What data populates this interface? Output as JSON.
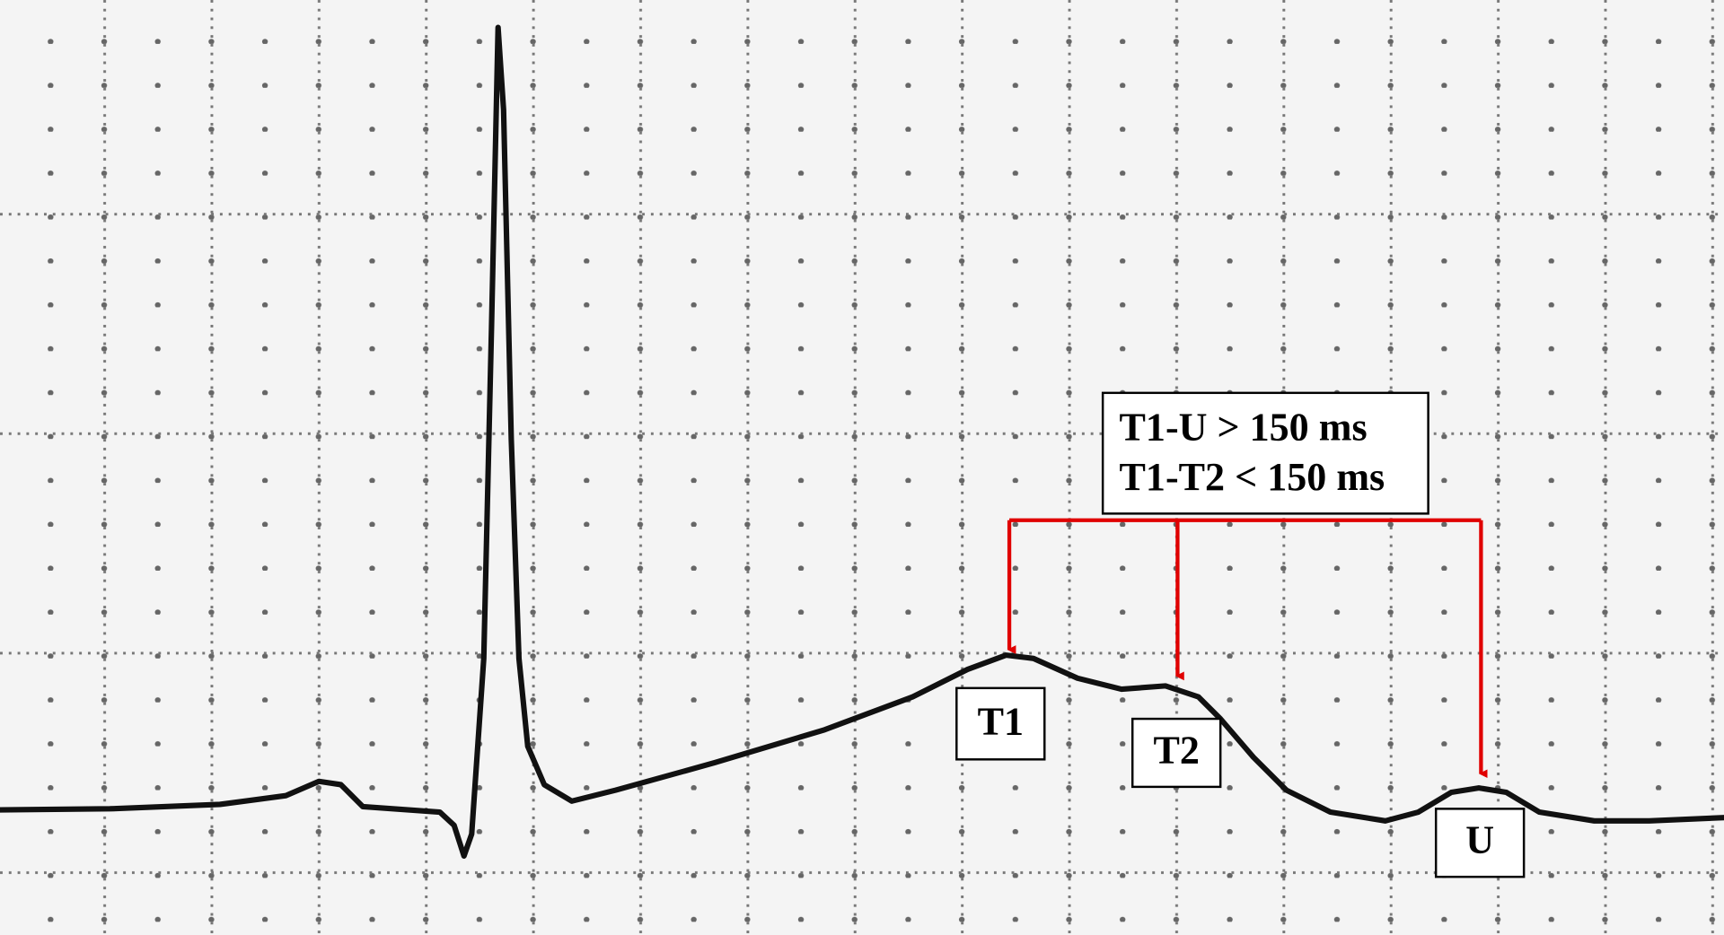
{
  "annotation": {
    "lines": [
      "T1-U > 150 ms",
      "T1-T2 < 150 ms"
    ]
  },
  "labels": [
    "T1",
    "T2",
    "U"
  ]
}
